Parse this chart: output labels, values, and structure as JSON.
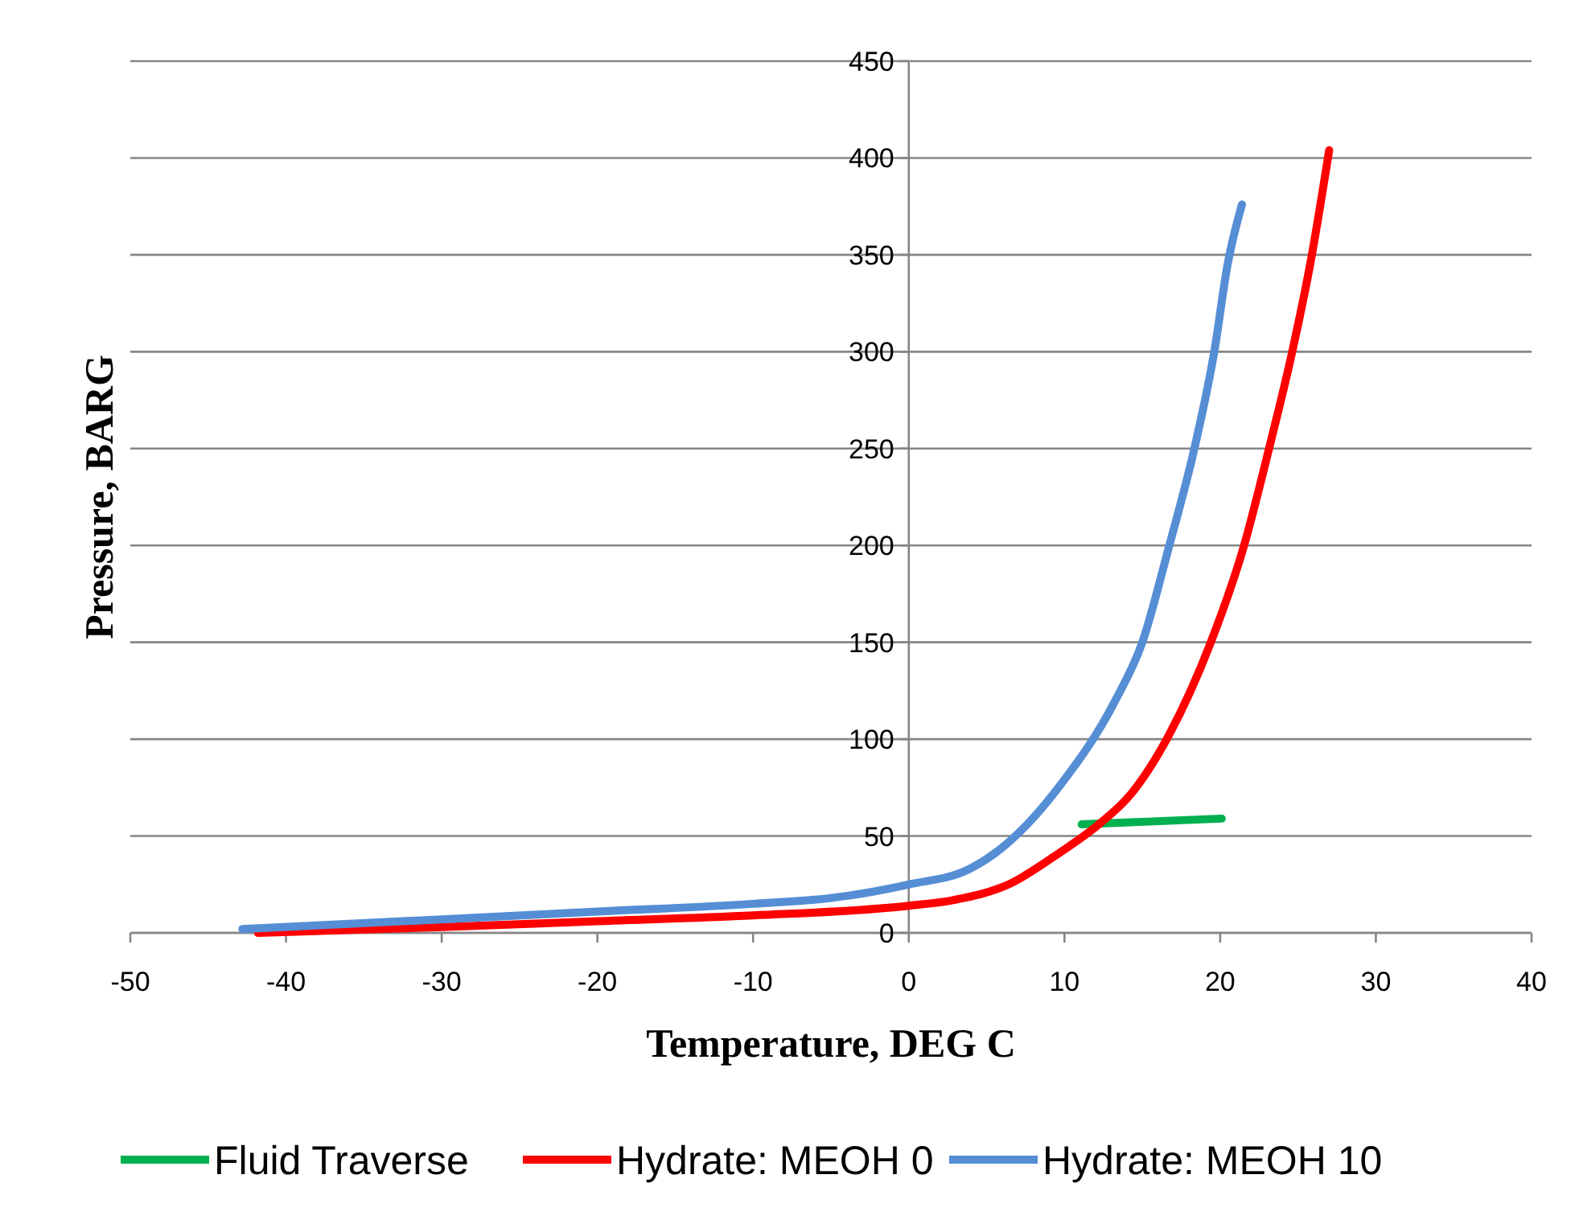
{
  "chart_data": {
    "type": "line",
    "xlabel": "Temperature,  DEG C",
    "ylabel": "Pressure,  BARG",
    "xlim": [
      -50,
      40
    ],
    "xticks": [
      -50,
      -40,
      -30,
      -20,
      -10,
      0,
      10,
      20,
      30,
      40
    ],
    "ylim": [
      0,
      450
    ],
    "yticks": [
      0,
      50,
      100,
      150,
      200,
      250,
      300,
      350,
      400,
      450
    ],
    "grid": "y",
    "legend": "bottom",
    "marker": "none",
    "line_style": "solid",
    "series": [
      {
        "name": "Fluid Traverse",
        "color": "#00b050",
        "x": [
          11.1,
          20.1
        ],
        "values": [
          56,
          59
        ]
      },
      {
        "name": "Hydrate: MEOH 0",
        "color": "#ff0000",
        "x": [
          -41.8,
          -30,
          -20,
          -10,
          0,
          2.9,
          6.4,
          9.8,
          12.2,
          14.3,
          16.7,
          19.4,
          21.5,
          23.2,
          24.6,
          25.8,
          27
        ],
        "values": [
          0,
          3,
          6,
          9,
          14,
          17,
          25,
          42,
          56,
          72,
          102,
          150,
          199,
          252,
          299,
          346,
          404
        ]
      },
      {
        "name": "Hydrate: MEOH 10",
        "color": "#558ed5",
        "x": [
          -42.8,
          -30,
          -20,
          -10,
          -5,
          0,
          3.9,
          6,
          9.8,
          13.2,
          15,
          16.7,
          18.4,
          19.6,
          20.5,
          21.4
        ],
        "values": [
          2,
          7,
          11,
          15,
          18,
          25,
          33,
          44,
          77,
          119,
          150,
          199,
          252,
          299,
          346,
          376
        ]
      }
    ]
  }
}
